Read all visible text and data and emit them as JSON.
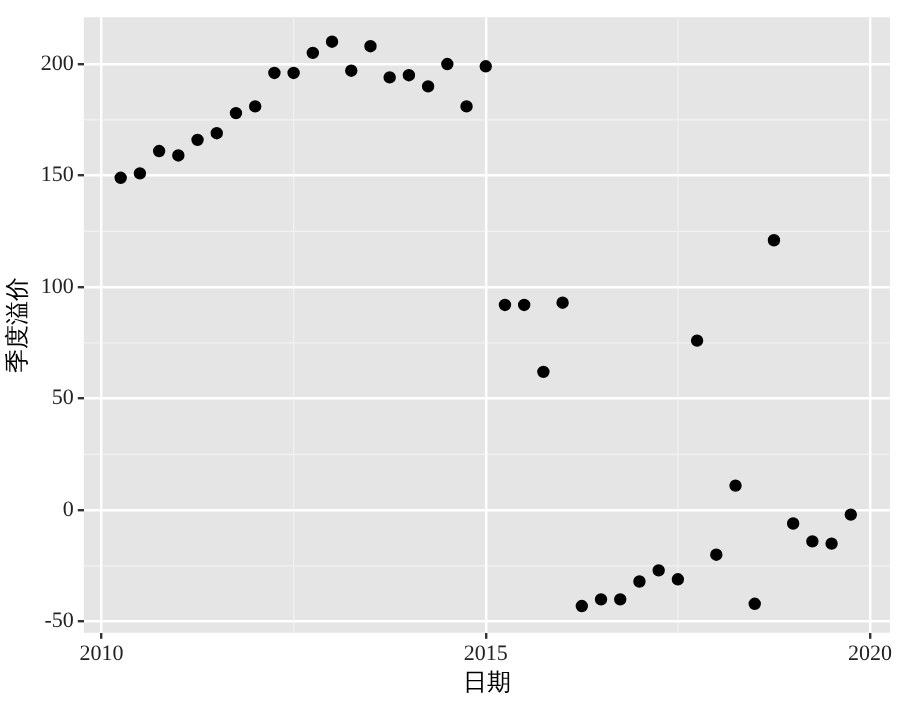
{
  "chart_data": {
    "type": "scatter",
    "xlabel": "日期",
    "ylabel": "季度溢价",
    "x": [
      2010.25,
      2010.5,
      2010.75,
      2011,
      2011.25,
      2011.5,
      2011.75,
      2012,
      2012.25,
      2012.5,
      2012.75,
      2013,
      2013.25,
      2013.5,
      2013.75,
      2014,
      2014.25,
      2014.5,
      2014.75,
      2015,
      2015.25,
      2015.5,
      2015.75,
      2016,
      2016.25,
      2016.5,
      2016.75,
      2017,
      2017.25,
      2017.5,
      2017.75,
      2018,
      2018.25,
      2018.5,
      2018.75,
      2019,
      2019.25,
      2019.5,
      2019.75
    ],
    "series": [
      {
        "color": "#000000",
        "values": [
          149,
          151,
          161,
          159,
          166,
          169,
          178,
          181,
          196,
          196,
          205,
          210,
          197,
          208,
          194,
          195,
          190,
          200,
          181,
          199,
          92,
          92,
          62,
          93,
          -43,
          -40,
          -40,
          -32,
          -27,
          -31,
          76,
          -20,
          11,
          -42,
          121,
          -6,
          -14,
          -15,
          -2
        ]
      }
    ],
    "xlim": [
      2009.77,
      2020.26
    ],
    "xticks": [
      2010,
      2015,
      2020
    ],
    "ylim": [
      -55,
      221
    ],
    "yticks": [
      -50,
      0,
      50,
      100,
      150,
      200
    ],
    "grid": true,
    "legend": false,
    "marker": "circle"
  }
}
